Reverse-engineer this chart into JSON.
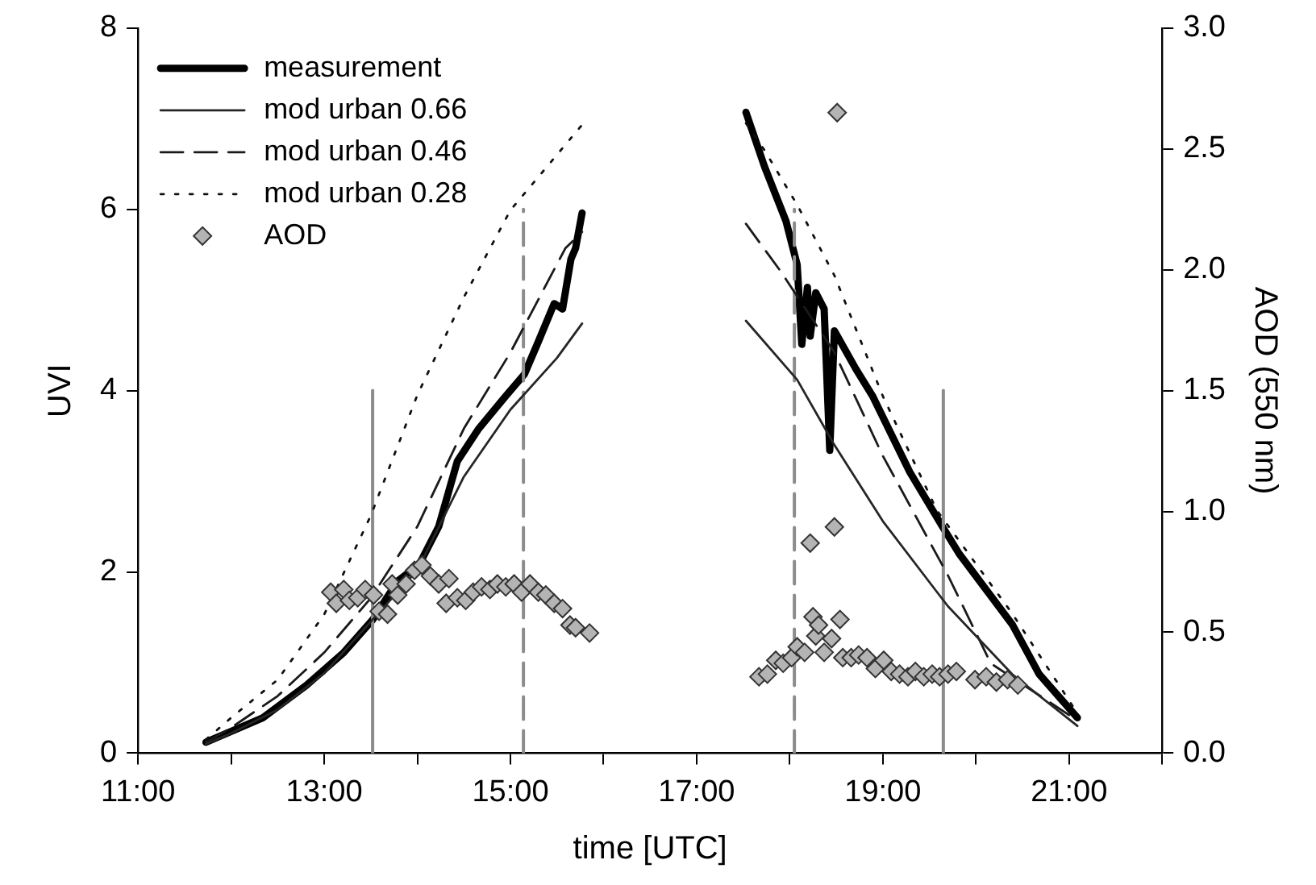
{
  "chart_data": {
    "type": "line",
    "xlabel": "time [UTC]",
    "ylabel": "UVI",
    "y2label": "AOD (550 nm)",
    "xlim": [
      11,
      22
    ],
    "xticks": [
      {
        "value": 11,
        "label": "11:00"
      },
      {
        "value": 12,
        "label": null
      },
      {
        "value": 13,
        "label": "13:00"
      },
      {
        "value": 14,
        "label": null
      },
      {
        "value": 15,
        "label": "15:00"
      },
      {
        "value": 16,
        "label": null
      },
      {
        "value": 17,
        "label": "17:00"
      },
      {
        "value": 18,
        "label": null
      },
      {
        "value": 19,
        "label": "19:00"
      },
      {
        "value": 20,
        "label": null
      },
      {
        "value": 21,
        "label": "21:00"
      },
      {
        "value": 22,
        "label": null
      }
    ],
    "ylim": [
      0,
      8
    ],
    "yticks": [
      0,
      2,
      4,
      6,
      8
    ],
    "y2lim": [
      0,
      3
    ],
    "y2ticks": [
      {
        "value": 0,
        "label": "0.0"
      },
      {
        "value": 0.5,
        "label": "0.5"
      },
      {
        "value": 1,
        "label": "1.0"
      },
      {
        "value": 1.5,
        "label": "1.5"
      },
      {
        "value": 2,
        "label": "2.0"
      },
      {
        "value": 2.5,
        "label": "2.5"
      },
      {
        "value": 3,
        "label": "3.0"
      }
    ],
    "grid": false,
    "legend": "top left",
    "series": [
      {
        "name": "measurement",
        "type": "line",
        "color": "#000000",
        "line_style": "solid",
        "marker": "none",
        "x": [
          11.73,
          12.34,
          12.81,
          13.21,
          13.52,
          13.79,
          14.02,
          14.23,
          14.43,
          14.66,
          14.95,
          15.15,
          15.3,
          15.47,
          15.56,
          15.65,
          15.7,
          15.77,
          null,
          17.53,
          17.73,
          17.96,
          18.08,
          18.13,
          18.19,
          18.22,
          18.28,
          18.37,
          18.43,
          18.48,
          18.71,
          18.89,
          19.29,
          19.64,
          19.82,
          20.39,
          20.68,
          21.09
        ],
        "values": [
          0.12,
          0.39,
          0.75,
          1.11,
          1.47,
          1.9,
          2.08,
          2.5,
          3.22,
          3.58,
          3.94,
          4.18,
          4.54,
          4.96,
          4.9,
          5.45,
          5.57,
          5.96,
          null,
          7.07,
          6.47,
          5.87,
          5.39,
          4.51,
          5.14,
          4.6,
          5.08,
          4.9,
          3.34,
          4.66,
          4.24,
          3.94,
          3.1,
          2.5,
          2.2,
          1.42,
          0.87,
          0.39
        ]
      },
      {
        "name": "mod urban 0.66",
        "type": "line",
        "color": "#262626",
        "line_style": "solid",
        "marker": "none",
        "x": [
          11.73,
          12,
          12.5,
          13,
          13.5,
          14,
          14.5,
          15,
          15.5,
          15.77,
          null,
          17.53,
          18.08,
          18.48,
          19,
          19.58,
          19.7,
          20.39,
          21.09
        ],
        "values": [
          0.1,
          0.22,
          0.48,
          0.88,
          1.45,
          2.02,
          3.05,
          3.79,
          4.36,
          4.74,
          null,
          4.77,
          4.12,
          3.4,
          2.56,
          1.78,
          1.62,
          0.87,
          0.3
        ]
      },
      {
        "name": "mod urban 0.46",
        "type": "line",
        "color": "#1a1a1a",
        "line_style": "dashed",
        "marker": "none",
        "x": [
          11.73,
          12,
          12.5,
          13,
          13.5,
          14,
          14.5,
          15,
          15.59,
          15.77,
          null,
          17.53,
          17.9,
          18.48,
          19,
          19.7,
          20.16,
          21.09
        ],
        "values": [
          0.12,
          0.28,
          0.63,
          1.11,
          1.71,
          2.5,
          3.58,
          4.42,
          5.57,
          5.75,
          null,
          5.84,
          5.32,
          4.42,
          3.28,
          1.96,
          0.99,
          0.36
        ]
      },
      {
        "name": "mod urban 0.28",
        "type": "line",
        "color": "#101010",
        "line_style": "dotted",
        "marker": "none",
        "x": [
          11.73,
          12,
          12.5,
          13,
          13.5,
          14,
          14.5,
          15,
          15.76,
          null,
          17.53,
          17.73,
          18.08,
          18.48,
          19,
          19.58,
          20.39,
          21.09
        ],
        "values": [
          0.15,
          0.39,
          0.81,
          1.53,
          2.62,
          3.95,
          5.03,
          5.99,
          6.92,
          null,
          6.95,
          6.65,
          6.05,
          5.27,
          3.94,
          2.68,
          1.54,
          0.44
        ]
      },
      {
        "name": "AOD",
        "type": "scatter",
        "axis": "y2",
        "color": "#b4b4b4",
        "marker": "diamond",
        "x": [
          13.07,
          13.13,
          13.21,
          13.27,
          13.36,
          13.44,
          13.53,
          13.59,
          13.68,
          13.73,
          13.79,
          13.88,
          13.97,
          14.05,
          14.14,
          14.23,
          14.31,
          14.34,
          14.43,
          14.52,
          14.6,
          14.69,
          14.78,
          14.86,
          14.95,
          15.04,
          15.12,
          15.21,
          15.3,
          15.38,
          15.47,
          15.56,
          15.64,
          15.7,
          15.85,
          17.67,
          17.76,
          17.85,
          17.93,
          18.02,
          18.08,
          18.16,
          18.22,
          18.25,
          18.28,
          18.31,
          18.37,
          18.45,
          18.48,
          18.51,
          18.54,
          18.57,
          18.66,
          18.74,
          18.83,
          18.92,
          19.01,
          19.09,
          19.18,
          19.27,
          19.35,
          19.44,
          19.53,
          19.61,
          19.7,
          19.79,
          19.99,
          20.11,
          20.22,
          20.34,
          20.45
        ],
        "values": [
          0.666,
          0.62,
          0.677,
          0.632,
          0.643,
          0.677,
          0.654,
          0.587,
          0.575,
          0.7,
          0.654,
          0.7,
          0.756,
          0.778,
          0.733,
          0.7,
          0.62,
          0.722,
          0.643,
          0.632,
          0.666,
          0.688,
          0.677,
          0.7,
          0.688,
          0.7,
          0.666,
          0.7,
          0.666,
          0.654,
          0.62,
          0.598,
          0.53,
          0.519,
          0.497,
          0.316,
          0.327,
          0.384,
          0.372,
          0.395,
          0.44,
          0.417,
          0.869,
          0.564,
          0.485,
          0.53,
          0.417,
          0.474,
          0.936,
          2.65,
          0.553,
          0.395,
          0.395,
          0.406,
          0.395,
          0.35,
          0.384,
          0.338,
          0.327,
          0.316,
          0.338,
          0.316,
          0.327,
          0.316,
          0.327,
          0.338,
          0.304,
          0.316,
          0.294,
          0.304,
          0.282
        ]
      },
      {
        "type": "line",
        "color": "#8c8c8c",
        "line_style": "solid",
        "marker": "none",
        "x": [
          13.52,
          13.52
        ],
        "values": [
          0,
          4
        ]
      },
      {
        "type": "line",
        "color": "#8c8c8c",
        "line_style": "dashed",
        "marker": "none",
        "x": [
          15.14,
          15.14
        ],
        "values": [
          0,
          6
        ]
      },
      {
        "type": "line",
        "color": "#8c8c8c",
        "line_style": "dashed",
        "marker": "none",
        "x": [
          18.05,
          18.05
        ],
        "values": [
          0,
          6
        ]
      },
      {
        "type": "line",
        "color": "#8c8c8c",
        "line_style": "solid",
        "marker": "none",
        "x": [
          19.65,
          19.65
        ],
        "values": [
          0,
          4
        ]
      }
    ]
  }
}
